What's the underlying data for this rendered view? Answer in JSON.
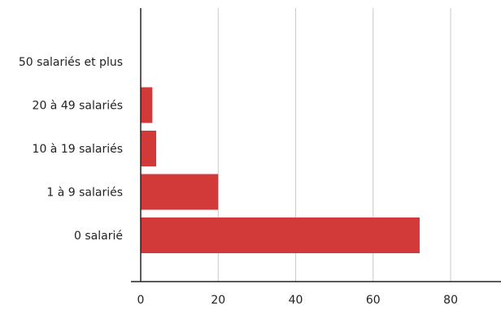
{
  "chart_data": {
    "type": "bar",
    "orientation": "horizontal",
    "categories": [
      "50 salariés et plus",
      "20 à 49 salariés",
      "10 à 19 salariés",
      "1 à 9 salariés",
      "0 salarié"
    ],
    "values": [
      0,
      3,
      4,
      20,
      72
    ],
    "xlim": [
      0,
      93
    ],
    "xticks": [
      0,
      20,
      40,
      60,
      80
    ],
    "grid": true,
    "bar_color": "#d23a3a"
  }
}
